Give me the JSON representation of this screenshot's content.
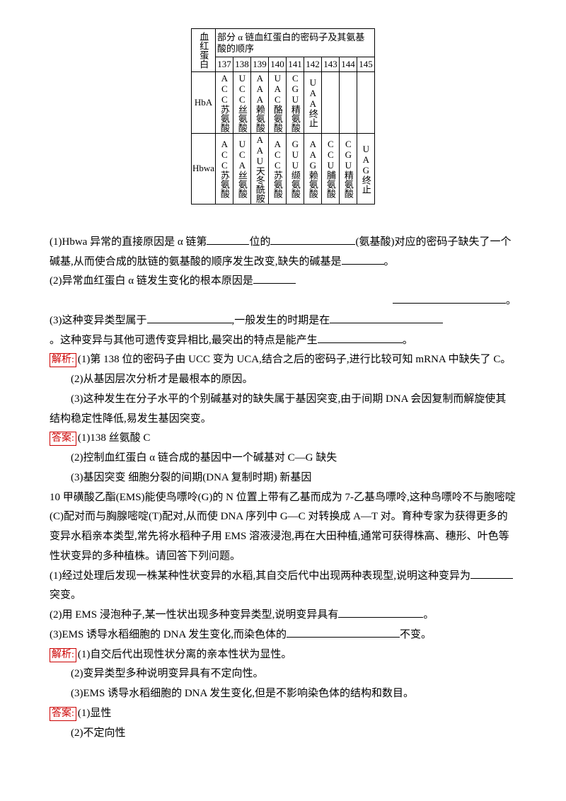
{
  "table": {
    "rowspan_label": "血红蛋白",
    "header_text": "部分 α 链血红蛋白的密码子及其氨基酸的顺序",
    "positions": [
      "137",
      "138",
      "139",
      "140",
      "141",
      "142",
      "143",
      "144",
      "145"
    ],
    "rowA_label": "HbA",
    "rowA": [
      "ACC苏氨酸",
      "UCC丝氨酸",
      "AAA赖氨酸",
      "UAC酪氨酸",
      "CGU精氨酸",
      "UAA终止",
      "",
      "",
      ""
    ],
    "rowB_label": "Hbwa",
    "rowB": [
      "ACC苏氨酸",
      "UCA丝氨酸",
      "AAU天冬酰胺",
      "ACC苏氨酸",
      "GUU缬氨酸",
      "AAG赖氨酸",
      "CCU脯氨酸",
      "CGU精氨酸",
      "UAG终止"
    ]
  },
  "q1": {
    "pre": "(1)Hbwa 异常的直接原因是 α 链第",
    "mid1": "位的",
    "mid2": "(氨基酸)对应的密码子缺失了一个",
    "line2": "碱基,从而使合成的肽链的氨基酸的顺序发生改变,缺失的碱基是",
    "end": "。"
  },
  "q2": {
    "text": "(2)异常血红蛋白 α 链发生变化的根本原因是",
    "tail": "。"
  },
  "q3": {
    "a": "(3)这种变异类型属于",
    "b": ",一般发生的时期是在",
    "c": "。这种变异与其他可遗传变异相比,最突出的特点是能产生",
    "d": "。"
  },
  "jx": {
    "label": "解析:",
    "l1": "(1)第 138 位的密码子由 UCC 变为 UCA,结合之后的密码子,进行比较可知 mRNA 中缺失了 C。",
    "l2": "(2)从基因层次分析才是最根本的原因。",
    "l3": "(3)这种发生在分子水平的个别碱基对的缺失属于基因突变,由于间期 DNA 会因复制而解旋使其结构稳定性降低,易发生基因突变。"
  },
  "da": {
    "label": "答案:",
    "l1": "(1)138  丝氨酸  C",
    "l2": "(2)控制血红蛋白 α 链合成的基因中一个碱基对 C—G 缺失",
    "l3": "(3)基因突变  细胞分裂的间期(DNA 复制时期)  新基因"
  },
  "q10": {
    "intro": "10 甲磺酸乙酯(EMS)能使鸟嘌呤(G)的 N 位置上带有乙基而成为 7-乙基鸟嘌呤,这种鸟嘌呤不与胞嘧啶(C)配对而与胸腺嘧啶(T)配对,从而使 DNA 序列中 G—C 对转换成 A—T 对。育种专家为获得更多的变异水稻亲本类型,常先将水稻种子用 EMS 溶液浸泡,再在大田种植,通常可获得株高、穗形、叶色等性状变异的多种植株。请回答下列问题。",
    "s1a": "(1)经过处理后发现一株某种性状变异的水稻,其自交后代中出现两种表现型,说明这种变异为",
    "s1b": "突变。",
    "s2a": "(2)用 EMS 浸泡种子,某一性状出现多种变异类型,说明变异具有",
    "s2b": "。",
    "s3a": "(3)EMS 诱导水稻细胞的 DNA 发生变化,而染色体的",
    "s3b": "不变。"
  },
  "jx2": {
    "l1": "(1)自交后代出现性状分离的亲本性状为显性。",
    "l2": "(2)变异类型多种说明变异具有不定向性。",
    "l3": "(3)EMS 诱导水稻细胞的 DNA 发生变化,但是不影响染色体的结构和数目。"
  },
  "da2": {
    "l1": "(1)显性",
    "l2": "(2)不定向性"
  }
}
